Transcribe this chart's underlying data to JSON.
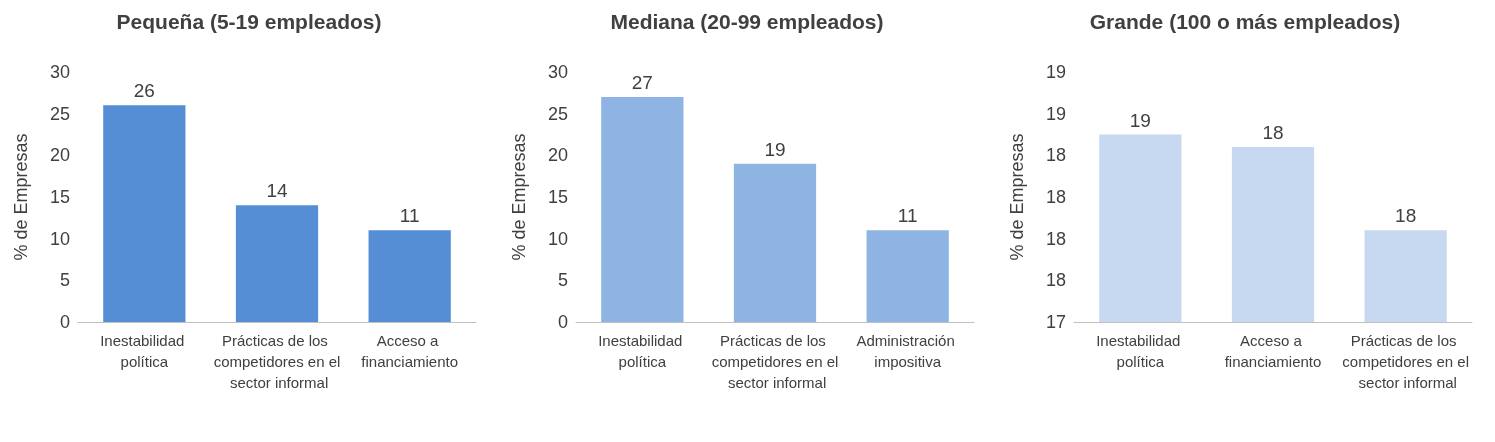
{
  "chart_data": [
    {
      "type": "bar",
      "title": "Pequeña (5-19 empleados)",
      "ylabel": "% de Empresas",
      "categories": [
        "Inestabilidad política",
        "Prácticas de los competidores en el sector informal",
        "Acceso a financiamiento"
      ],
      "values": [
        26,
        14,
        11
      ],
      "color": "#558ed5",
      "ylim": [
        0,
        30
      ],
      "yticks": [
        0,
        5,
        10,
        15,
        20,
        25,
        30
      ],
      "data_labels": true
    },
    {
      "type": "bar",
      "title": "Mediana (20-99 empleados)",
      "ylabel": "% de Empresas",
      "categories": [
        "Inestabilidad política",
        "Prácticas de los competidores en el sector informal",
        "Administración impositiva"
      ],
      "values": [
        27,
        19,
        11
      ],
      "color": "#8eb4e3",
      "ylim": [
        0,
        30
      ],
      "yticks": [
        0,
        5,
        10,
        15,
        20,
        25,
        30
      ],
      "data_labels": true
    },
    {
      "type": "bar",
      "title": "Grande (100 o más empleados)",
      "ylabel": "% de Empresas",
      "categories": [
        "Inestabilidad política",
        "Acceso a financiamiento",
        "Prácticas de los competidores en el sector informal"
      ],
      "values": [
        18.55,
        18.46,
        17.86
      ],
      "value_labels": [
        "19",
        "18",
        "18"
      ],
      "color": "#c6d9f1",
      "ylim": [
        17.2,
        19
      ],
      "yticks": [
        {
          "value": 17.2,
          "label": "17"
        },
        {
          "value": 17.5,
          "label": "18"
        },
        {
          "value": 17.8,
          "label": "18"
        },
        {
          "value": 18.1,
          "label": "18"
        },
        {
          "value": 18.4,
          "label": "18"
        },
        {
          "value": 18.7,
          "label": "19"
        },
        {
          "value": 19,
          "label": "19"
        }
      ]
    }
  ]
}
